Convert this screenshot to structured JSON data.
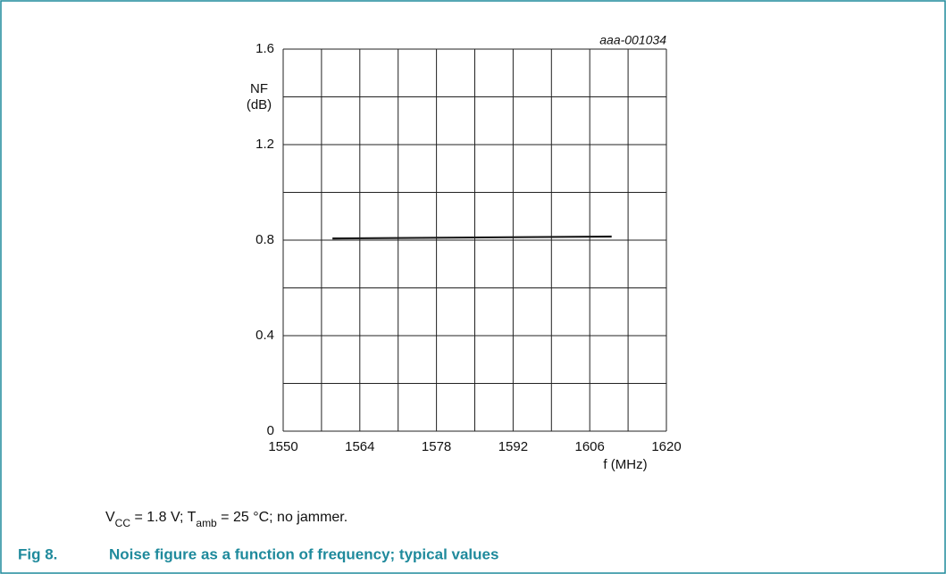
{
  "chart_data": {
    "type": "line",
    "annotation": "aaa-001034",
    "ylabel": [
      "NF",
      "(dB)"
    ],
    "xlabel": "f (MHz)",
    "x": [
      1559,
      1610
    ],
    "series": [
      {
        "color": "#1a1a1a",
        "values": [
          0.807,
          0.815
        ]
      }
    ],
    "xlim": [
      1550,
      1620
    ],
    "xticks": [
      1550,
      1564,
      1578,
      1592,
      1606,
      1620
    ],
    "xgrid_minor": [
      1557,
      1571,
      1585,
      1599,
      1613
    ],
    "ylim": [
      0,
      1.6
    ],
    "yticks": [
      0,
      0.4,
      0.8,
      1.2,
      1.6
    ],
    "ygrid_minor": [
      0.2,
      0.6,
      1.0,
      1.4
    ],
    "grid": true,
    "note": [
      "V",
      "CC",
      " = 1.8 V; T",
      "amb",
      " = 25 °C; no jammer."
    ],
    "figure_label": "Fig 8.",
    "title": "Noise figure as a function of frequency; typical values"
  }
}
